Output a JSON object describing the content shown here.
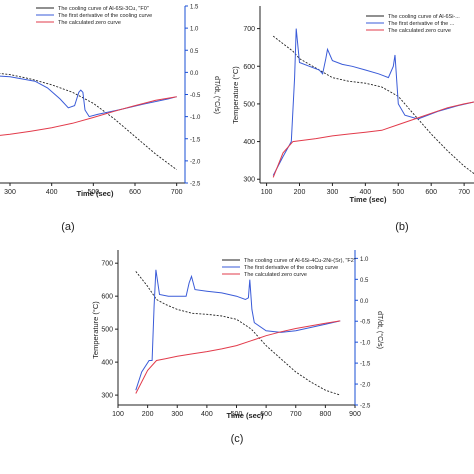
{
  "colors": {
    "cooling": "#222222",
    "derivative": "#3a5bd8",
    "zero": "#e23b4b",
    "axis": "#222222",
    "axis_right": "#1a4fd6"
  },
  "captions": [
    "(a)",
    "(b)",
    "(c)"
  ],
  "chart_data": [
    {
      "type": "line",
      "panel": "(a)",
      "legend": [
        "The cooling curve of Al-6Si-3Cu, \"F0\"",
        "The first derivative of the cooling curve",
        "The calculated zero curve"
      ],
      "xlabel": "Time (sec)",
      "ylabel_right": "dT/dt, (°C/s)",
      "x_ticks": [
        "300",
        "400",
        "500",
        "600",
        "700"
      ],
      "y_right_ticks": [
        "1.5",
        "1.0",
        "0.5",
        "0.0",
        "-0.5",
        "-1.0",
        "-1.5",
        "-2.0",
        "-2.5"
      ],
      "xlim": [
        180,
        720
      ],
      "y_right_lim": [
        -2.5,
        1.5
      ],
      "series": [
        {
          "name": "cooling",
          "axis": "right",
          "x": [
            180,
            250,
            300,
            350,
            400,
            450,
            500,
            550,
            600,
            650,
            700
          ],
          "y": [
            0.05,
            0.0,
            -0.05,
            -0.15,
            -0.28,
            -0.45,
            -0.7,
            -1.05,
            -1.45,
            -1.85,
            -2.2
          ]
        },
        {
          "name": "derivative",
          "axis": "right",
          "x": [
            180,
            200,
            215,
            225,
            235,
            250,
            270,
            300,
            330,
            360,
            390,
            420,
            440,
            455,
            465,
            470,
            475,
            480,
            490,
            510,
            560,
            620,
            680,
            700
          ],
          "y": [
            -0.3,
            -0.35,
            -0.4,
            -0.3,
            0.2,
            0.0,
            -0.08,
            -0.1,
            -0.15,
            -0.2,
            -0.35,
            -0.6,
            -0.8,
            -0.75,
            -0.45,
            -0.4,
            -0.45,
            -0.85,
            -1.0,
            -0.95,
            -0.85,
            -0.72,
            -0.6,
            -0.55
          ]
        },
        {
          "name": "zero",
          "axis": "right",
          "x": [
            180,
            250,
            300,
            350,
            400,
            450,
            500,
            550,
            600,
            650,
            700
          ],
          "y": [
            -1.45,
            -1.45,
            -1.4,
            -1.33,
            -1.25,
            -1.15,
            -1.02,
            -0.88,
            -0.75,
            -0.63,
            -0.55
          ]
        }
      ]
    },
    {
      "type": "line",
      "panel": "(b)",
      "legend": [
        "The cooling curve of Al-6Si-...",
        "The first derivative of the ...",
        "The calculated zero curve"
      ],
      "xlabel": "Time (sec)",
      "ylabel_left": "Temperature (°C)",
      "x_ticks": [
        "100",
        "200",
        "300",
        "400",
        "500",
        "600",
        "700"
      ],
      "y_left_ticks": [
        "700",
        "600",
        "500",
        "400",
        "300"
      ],
      "xlim": [
        80,
        730
      ],
      "ylim": [
        290,
        760
      ],
      "series": [
        {
          "name": "cooling",
          "axis": "left",
          "x": [
            120,
            150,
            180,
            200,
            250,
            300,
            350,
            400,
            450,
            500,
            550,
            600,
            650,
            700,
            730
          ],
          "y": [
            680,
            660,
            640,
            620,
            595,
            570,
            560,
            555,
            545,
            520,
            470,
            420,
            375,
            335,
            315
          ]
        },
        {
          "name": "derivative",
          "axis": "left",
          "x": [
            120,
            150,
            175,
            185,
            190,
            200,
            230,
            260,
            270,
            280,
            285,
            300,
            330,
            360,
            400,
            440,
            470,
            485,
            490,
            500,
            520,
            560,
            620,
            680,
            730
          ],
          "y": [
            310,
            360,
            400,
            570,
            700,
            610,
            600,
            590,
            580,
            620,
            645,
            615,
            605,
            600,
            590,
            580,
            570,
            600,
            630,
            500,
            470,
            460,
            480,
            495,
            505
          ]
        },
        {
          "name": "zero",
          "axis": "left",
          "x": [
            120,
            150,
            180,
            200,
            250,
            300,
            350,
            400,
            450,
            500,
            550,
            600,
            650,
            700,
            730
          ],
          "y": [
            305,
            370,
            400,
            402,
            408,
            415,
            420,
            425,
            430,
            445,
            460,
            475,
            490,
            500,
            505
          ]
        }
      ]
    },
    {
      "type": "line",
      "panel": "(c)",
      "legend": [
        "The cooling curve of Al-6Si-4Cu-2Ni-(Sr), \"F2\"",
        "The first derivative of the cooling curve",
        "The calculated zero curve"
      ],
      "xlabel": "Time (sec)",
      "ylabel_left": "Temperature (°C)",
      "ylabel_right": "dT/dt, (°C/s)",
      "x_ticks": [
        "100",
        "200",
        "300",
        "400",
        "500",
        "600",
        "700",
        "800",
        "900"
      ],
      "y_left_ticks": [
        "700",
        "600",
        "500",
        "400",
        "300"
      ],
      "y_right_ticks": [
        "1.0",
        "0.5",
        "0.0",
        "-0.5",
        "-1.0",
        "-1.5",
        "-2.0",
        "-2.5"
      ],
      "xlim": [
        100,
        900
      ],
      "ylim": [
        270,
        740
      ],
      "y_right_lim": [
        -2.5,
        1.2
      ],
      "series": [
        {
          "name": "cooling",
          "axis": "left",
          "x": [
            160,
            200,
            230,
            260,
            300,
            350,
            400,
            450,
            500,
            550,
            600,
            650,
            700,
            750,
            800,
            850
          ],
          "y": [
            675,
            630,
            590,
            575,
            560,
            548,
            545,
            540,
            530,
            500,
            450,
            410,
            370,
            340,
            315,
            300
          ]
        },
        {
          "name": "derivative",
          "axis": "left",
          "x": [
            160,
            180,
            205,
            215,
            222,
            228,
            240,
            270,
            300,
            330,
            340,
            348,
            360,
            400,
            450,
            500,
            530,
            540,
            545,
            552,
            560,
            600,
            650,
            700,
            750,
            800,
            850
          ],
          "y": [
            315,
            370,
            405,
            405,
            570,
            680,
            605,
            600,
            600,
            600,
            640,
            660,
            620,
            615,
            610,
            600,
            590,
            595,
            650,
            560,
            520,
            495,
            490,
            495,
            505,
            515,
            525
          ]
        },
        {
          "name": "zero",
          "axis": "left",
          "x": [
            160,
            200,
            230,
            260,
            300,
            350,
            400,
            450,
            500,
            550,
            600,
            650,
            700,
            750,
            800,
            850
          ],
          "y": [
            305,
            375,
            405,
            410,
            418,
            425,
            432,
            440,
            450,
            465,
            480,
            492,
            502,
            510,
            518,
            525
          ]
        }
      ]
    }
  ]
}
